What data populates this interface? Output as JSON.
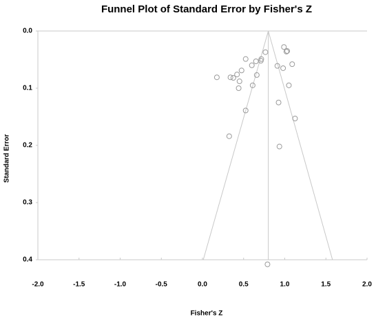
{
  "chart_data": {
    "type": "scatter",
    "title": "Funnel Plot of Standard Error by Fisher's Z",
    "x_label": "Fisher's Z",
    "y_label": "Standard Error",
    "x": [
      0.175,
      0.34,
      0.375,
      0.42,
      0.45,
      0.44,
      0.475,
      0.525,
      0.6,
      0.65,
      0.71,
      0.715,
      0.765,
      0.66,
      0.61,
      0.525,
      0.325,
      0.91,
      0.98,
      0.99,
      1.03,
      1.02,
      1.09,
      1.05,
      0.925,
      1.125,
      0.935,
      0.79
    ],
    "values": [
      0.081,
      0.081,
      0.082,
      0.076,
      0.088,
      0.1,
      0.069,
      0.049,
      0.06,
      0.053,
      0.052,
      0.049,
      0.037,
      0.077,
      0.095,
      0.139,
      0.184,
      0.061,
      0.065,
      0.028,
      0.035,
      0.036,
      0.058,
      0.095,
      0.125,
      0.153,
      0.202,
      0.408
    ],
    "color": "#9a9a9a",
    "funnel": {
      "center": 0.8,
      "left_at_base": 0.01,
      "right_at_base": 1.58
    },
    "xlim": [
      -2.0,
      2.0
    ],
    "xticks": [
      {
        "value": -2.0,
        "label": "-2.0"
      },
      -1.5,
      {
        "value": -1.0,
        "label": "-1.0"
      },
      -0.5,
      {
        "value": 0.0,
        "label": "0.0"
      },
      0.5,
      {
        "value": 1.0,
        "label": "1.0"
      },
      1.5,
      {
        "value": 2.0,
        "label": "2.0"
      }
    ],
    "ylim": [
      0,
      0.4
    ],
    "y_inverted": true,
    "yticks": [
      {
        "value": 0,
        "label": "0.0"
      },
      0.1,
      0.2,
      0.3,
      0.4
    ]
  }
}
